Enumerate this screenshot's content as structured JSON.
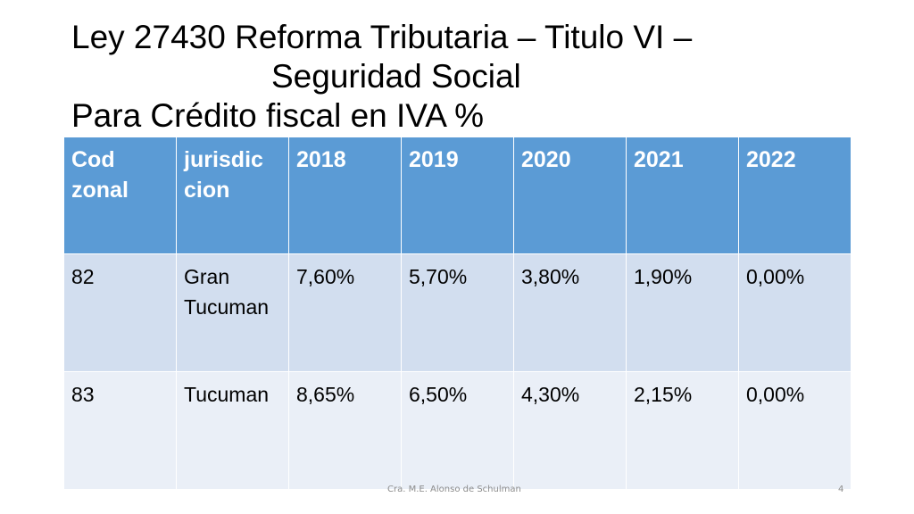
{
  "slide": {
    "title_lines": [
      "Ley 27430 Reforma Tributaria – Titulo VI –",
      "Seguridad Social",
      "Para Crédito fiscal en IVA %"
    ],
    "footer_author": "Cra. M.E. Alonso de Schulman",
    "page_number": "4"
  },
  "table": {
    "headers": [
      "Cod zonal",
      "jurisdic cion",
      "2018",
      "2019",
      "2020",
      "2021",
      "2022"
    ],
    "rows": [
      [
        "82",
        "Gran Tucuman",
        "7,60%",
        "5,70%",
        "3,80%",
        "1,90%",
        "0,00%"
      ],
      [
        "83",
        "Tucuman",
        "8,65%",
        "6,50%",
        "4,30%",
        "2,15%",
        "0,00%"
      ]
    ]
  },
  "colors": {
    "header_background": "#5b9bd5",
    "row_band_1": "#d2deef",
    "row_band_2": "#eaeff7"
  }
}
